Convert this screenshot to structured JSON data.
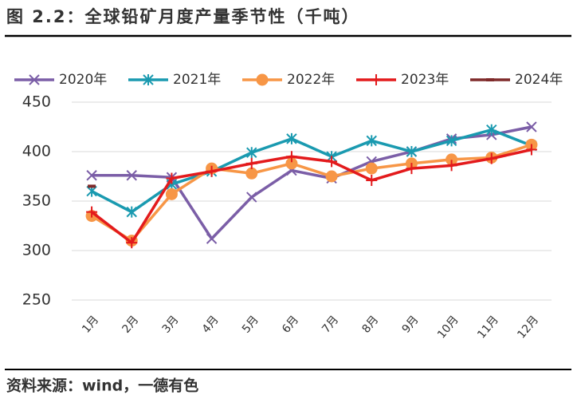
{
  "chart_data": {
    "type": "line",
    "title": "图 2.2：全球铅矿月度产量季节性（千吨）",
    "source": "资料来源：wind，一德有色",
    "categories": [
      "1月",
      "2月",
      "3月",
      "4月",
      "5月",
      "6月",
      "7月",
      "8月",
      "9月",
      "10月",
      "11月",
      "12月"
    ],
    "series": [
      {
        "name": "2020年",
        "color": "#7b5ea7",
        "marker": "x",
        "values": [
          376,
          376,
          374,
          312,
          354,
          381,
          373,
          390,
          400,
          413,
          417,
          425
        ]
      },
      {
        "name": "2021年",
        "color": "#1a9ab0",
        "marker": "asterisk",
        "values": [
          360,
          339,
          367,
          380,
          399,
          413,
          395,
          411,
          400,
          411,
          422,
          406
        ]
      },
      {
        "name": "2022年",
        "color": "#f79646",
        "marker": "circle",
        "values": [
          335,
          310,
          357,
          383,
          378,
          388,
          375,
          383,
          388,
          392,
          394,
          407
        ]
      },
      {
        "name": "2023年",
        "color": "#e31a1c",
        "marker": "plus",
        "values": [
          339,
          308,
          373,
          380,
          388,
          395,
          390,
          371,
          383,
          386,
          393,
          402
        ]
      },
      {
        "name": "2024年",
        "color": "#7f2a2a",
        "marker": "dash",
        "values": [
          365,
          null,
          null,
          null,
          null,
          null,
          null,
          null,
          null,
          null,
          null,
          null
        ]
      }
    ],
    "ylim": [
      250,
      450
    ],
    "yticks": [
      250,
      300,
      350,
      400,
      450
    ],
    "grid": true
  }
}
